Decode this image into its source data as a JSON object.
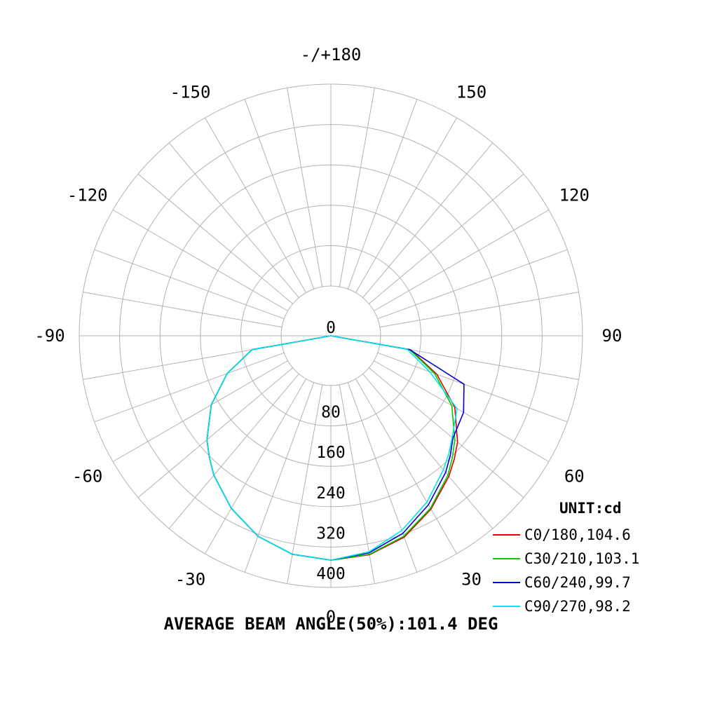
{
  "chart_data": {
    "type": "polar",
    "unit_label": "UNIT:cd",
    "footer": "AVERAGE BEAM ANGLE(50%):101.4 DEG",
    "radial_range": [
      0,
      400
    ],
    "radial_grid_step": 80,
    "radial_tick_labels": [
      "0",
      "80",
      "160",
      "240",
      "320",
      "400"
    ],
    "angle_grid_step": 10,
    "angle_labels": [
      {
        "angle": 180,
        "text": "-/+180"
      },
      {
        "angle": 150,
        "text": "150"
      },
      {
        "angle": -150,
        "text": "-150"
      },
      {
        "angle": 120,
        "text": "120"
      },
      {
        "angle": -120,
        "text": "-120"
      },
      {
        "angle": 90,
        "text": "90"
      },
      {
        "angle": -90,
        "text": "-90"
      },
      {
        "angle": 60,
        "text": "60"
      },
      {
        "angle": -60,
        "text": "-60"
      },
      {
        "angle": 30,
        "text": "30"
      },
      {
        "angle": -30,
        "text": "-30"
      },
      {
        "angle": 0,
        "text": "0"
      }
    ],
    "angles": [
      -90,
      -80,
      -70,
      -60,
      -50,
      -45,
      -40,
      -30,
      -20,
      -10,
      0,
      10,
      20,
      30,
      40,
      45,
      50,
      60,
      70,
      80,
      90
    ],
    "series": [
      {
        "name": "C0/180,104.6",
        "color": "#e00000",
        "values": [
          0,
          60,
          120,
          175,
          222,
          242,
          262,
          296,
          324,
          341,
          346,
          342,
          326,
          298,
          265,
          247,
          229,
          185,
          125,
          62,
          0
        ]
      },
      {
        "name": "C30/210,103.1",
        "color": "#00cc00",
        "values": [
          0,
          60,
          120,
          175,
          222,
          242,
          262,
          296,
          324,
          341,
          346,
          341,
          324,
          296,
          262,
          242,
          222,
          178,
          120,
          60,
          0
        ]
      },
      {
        "name": "C60/240,99.7",
        "color": "#0000cc",
        "values": [
          0,
          60,
          120,
          175,
          222,
          242,
          262,
          296,
          324,
          341,
          346,
          338,
          318,
          288,
          255,
          236,
          217,
          205,
          182,
          60,
          0
        ]
      },
      {
        "name": "C90/270,98.2",
        "color": "#00e5ee",
        "values": [
          0,
          60,
          120,
          175,
          222,
          242,
          262,
          296,
          324,
          341,
          346,
          336,
          312,
          282,
          248,
          232,
          215,
          190,
          110,
          55,
          0
        ]
      }
    ]
  }
}
